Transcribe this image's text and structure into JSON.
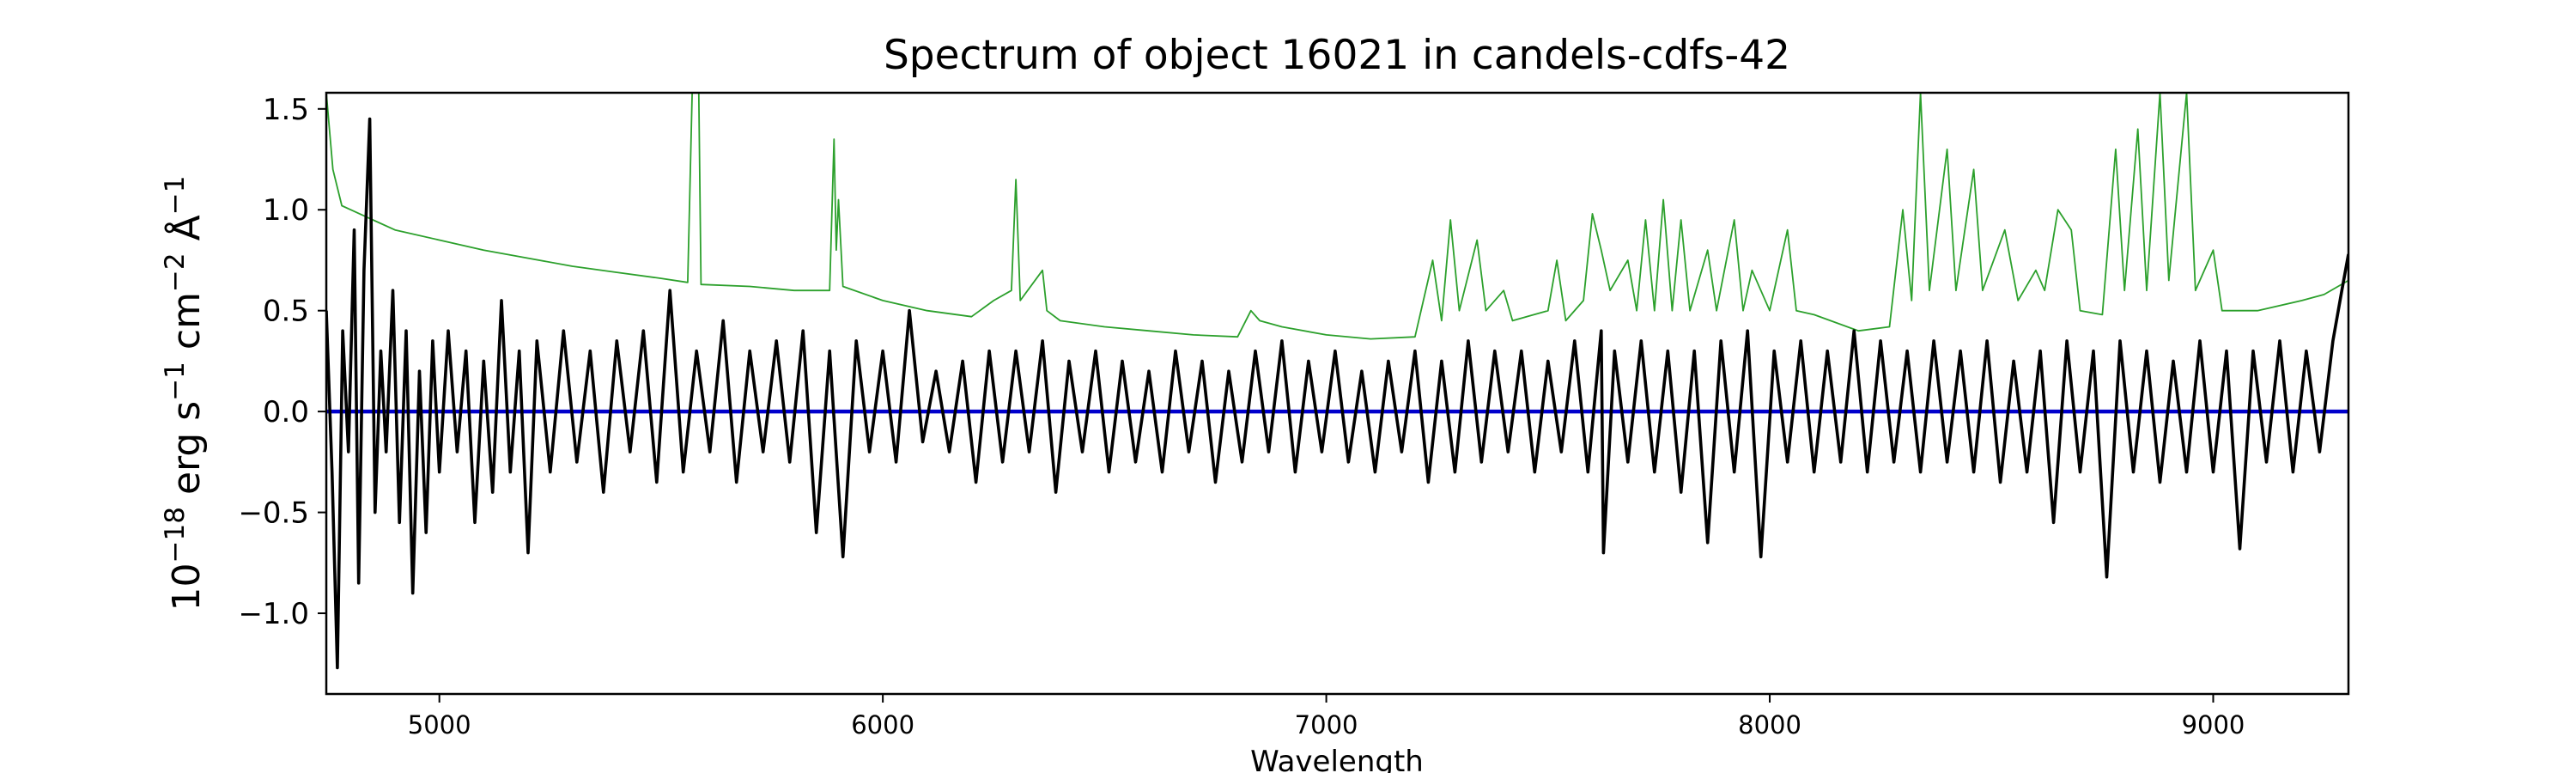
{
  "chart_data": {
    "type": "line",
    "title": "Spectrum of object 16021 in candels-cdfs-42",
    "xlabel": "Wavelength",
    "ylabel": {
      "base": "10",
      "exp1": "−18",
      "t1": " erg s",
      "exp2": "−1",
      "t2": " cm",
      "exp3": "−2",
      "t3": " Å",
      "exp4": "−1"
    },
    "xlim": [
      4745,
      9305
    ],
    "ylim": [
      -1.4,
      1.58
    ],
    "xticks": [
      {
        "value": 5000,
        "label": "5000"
      },
      {
        "value": 6000,
        "label": "6000"
      },
      {
        "value": 7000,
        "label": "7000"
      },
      {
        "value": 8000,
        "label": "8000"
      },
      {
        "value": 9000,
        "label": "9000"
      }
    ],
    "yticks": [
      {
        "value": -1.0,
        "label": "−1.0"
      },
      {
        "value": -0.5,
        "label": "−0.5"
      },
      {
        "value": 0.0,
        "label": "0.0"
      },
      {
        "value": 0.5,
        "label": "0.5"
      },
      {
        "value": 1.0,
        "label": "1.0"
      },
      {
        "value": 1.5,
        "label": "1.5"
      }
    ],
    "grid": false,
    "series": [
      {
        "role": "error",
        "color": "#2ca02c",
        "points": [
          [
            4745,
            1.58
          ],
          [
            4760,
            1.2
          ],
          [
            4780,
            1.02
          ],
          [
            4800,
            1.0
          ],
          [
            4850,
            0.95
          ],
          [
            4900,
            0.9
          ],
          [
            5000,
            0.85
          ],
          [
            5100,
            0.8
          ],
          [
            5200,
            0.76
          ],
          [
            5300,
            0.72
          ],
          [
            5400,
            0.69
          ],
          [
            5500,
            0.66
          ],
          [
            5560,
            0.64
          ],
          [
            5570,
            1.58
          ],
          [
            5585,
            1.58
          ],
          [
            5590,
            0.63
          ],
          [
            5700,
            0.62
          ],
          [
            5800,
            0.6
          ],
          [
            5880,
            0.6
          ],
          [
            5890,
            1.35
          ],
          [
            5895,
            0.8
          ],
          [
            5900,
            1.05
          ],
          [
            5910,
            0.62
          ],
          [
            6000,
            0.55
          ],
          [
            6100,
            0.5
          ],
          [
            6200,
            0.47
          ],
          [
            6250,
            0.55
          ],
          [
            6290,
            0.6
          ],
          [
            6300,
            1.15
          ],
          [
            6310,
            0.55
          ],
          [
            6360,
            0.7
          ],
          [
            6370,
            0.5
          ],
          [
            6400,
            0.45
          ],
          [
            6500,
            0.42
          ],
          [
            6600,
            0.4
          ],
          [
            6700,
            0.38
          ],
          [
            6800,
            0.37
          ],
          [
            6830,
            0.5
          ],
          [
            6850,
            0.45
          ],
          [
            6900,
            0.42
          ],
          [
            7000,
            0.38
          ],
          [
            7100,
            0.36
          ],
          [
            7200,
            0.37
          ],
          [
            7240,
            0.75
          ],
          [
            7260,
            0.45
          ],
          [
            7280,
            0.95
          ],
          [
            7300,
            0.5
          ],
          [
            7340,
            0.85
          ],
          [
            7360,
            0.5
          ],
          [
            7400,
            0.6
          ],
          [
            7420,
            0.45
          ],
          [
            7500,
            0.5
          ],
          [
            7520,
            0.75
          ],
          [
            7540,
            0.45
          ],
          [
            7580,
            0.55
          ],
          [
            7600,
            0.98
          ],
          [
            7620,
            0.8
          ],
          [
            7640,
            0.6
          ],
          [
            7680,
            0.75
          ],
          [
            7700,
            0.5
          ],
          [
            7720,
            0.95
          ],
          [
            7740,
            0.5
          ],
          [
            7760,
            1.05
          ],
          [
            7780,
            0.5
          ],
          [
            7800,
            0.95
          ],
          [
            7820,
            0.5
          ],
          [
            7860,
            0.8
          ],
          [
            7880,
            0.5
          ],
          [
            7920,
            0.95
          ],
          [
            7940,
            0.5
          ],
          [
            7960,
            0.7
          ],
          [
            8000,
            0.5
          ],
          [
            8040,
            0.9
          ],
          [
            8060,
            0.5
          ],
          [
            8100,
            0.48
          ],
          [
            8200,
            0.4
          ],
          [
            8270,
            0.42
          ],
          [
            8300,
            1.0
          ],
          [
            8320,
            0.55
          ],
          [
            8340,
            1.58
          ],
          [
            8360,
            0.6
          ],
          [
            8400,
            1.3
          ],
          [
            8420,
            0.6
          ],
          [
            8460,
            1.2
          ],
          [
            8480,
            0.6
          ],
          [
            8530,
            0.9
          ],
          [
            8560,
            0.55
          ],
          [
            8600,
            0.7
          ],
          [
            8620,
            0.6
          ],
          [
            8650,
            1.0
          ],
          [
            8680,
            0.9
          ],
          [
            8700,
            0.5
          ],
          [
            8750,
            0.48
          ],
          [
            8780,
            1.3
          ],
          [
            8800,
            0.6
          ],
          [
            8830,
            1.4
          ],
          [
            8850,
            0.6
          ],
          [
            8880,
            1.58
          ],
          [
            8900,
            0.65
          ],
          [
            8940,
            1.58
          ],
          [
            8960,
            0.6
          ],
          [
            9000,
            0.8
          ],
          [
            9020,
            0.5
          ],
          [
            9100,
            0.5
          ],
          [
            9200,
            0.55
          ],
          [
            9250,
            0.58
          ],
          [
            9305,
            0.65
          ]
        ]
      },
      {
        "role": "model",
        "color": "#0000cc",
        "points": [
          [
            4745,
            0.0
          ],
          [
            9305,
            0.0
          ]
        ]
      },
      {
        "role": "flux",
        "color": "#000000",
        "points": [
          [
            4745,
            0.5
          ],
          [
            4758,
            -0.3
          ],
          [
            4770,
            -1.27
          ],
          [
            4782,
            0.4
          ],
          [
            4795,
            -0.2
          ],
          [
            4808,
            0.9
          ],
          [
            4818,
            -0.85
          ],
          [
            4830,
            0.7
          ],
          [
            4843,
            1.45
          ],
          [
            4855,
            -0.5
          ],
          [
            4868,
            0.3
          ],
          [
            4880,
            -0.2
          ],
          [
            4895,
            0.6
          ],
          [
            4910,
            -0.55
          ],
          [
            4925,
            0.4
          ],
          [
            4940,
            -0.9
          ],
          [
            4955,
            0.2
          ],
          [
            4970,
            -0.6
          ],
          [
            4985,
            0.35
          ],
          [
            5000,
            -0.3
          ],
          [
            5020,
            0.4
          ],
          [
            5040,
            -0.2
          ],
          [
            5060,
            0.3
          ],
          [
            5080,
            -0.55
          ],
          [
            5100,
            0.25
          ],
          [
            5120,
            -0.4
          ],
          [
            5140,
            0.55
          ],
          [
            5160,
            -0.3
          ],
          [
            5180,
            0.3
          ],
          [
            5200,
            -0.7
          ],
          [
            5220,
            0.35
          ],
          [
            5250,
            -0.3
          ],
          [
            5280,
            0.4
          ],
          [
            5310,
            -0.25
          ],
          [
            5340,
            0.3
          ],
          [
            5370,
            -0.4
          ],
          [
            5400,
            0.35
          ],
          [
            5430,
            -0.2
          ],
          [
            5460,
            0.4
          ],
          [
            5490,
            -0.35
          ],
          [
            5520,
            0.6
          ],
          [
            5550,
            -0.3
          ],
          [
            5580,
            0.3
          ],
          [
            5610,
            -0.2
          ],
          [
            5640,
            0.45
          ],
          [
            5670,
            -0.35
          ],
          [
            5700,
            0.3
          ],
          [
            5730,
            -0.2
          ],
          [
            5760,
            0.35
          ],
          [
            5790,
            -0.25
          ],
          [
            5820,
            0.4
          ],
          [
            5850,
            -0.6
          ],
          [
            5880,
            0.3
          ],
          [
            5910,
            -0.72
          ],
          [
            5940,
            0.35
          ],
          [
            5970,
            -0.2
          ],
          [
            6000,
            0.3
          ],
          [
            6030,
            -0.25
          ],
          [
            6060,
            0.5
          ],
          [
            6090,
            -0.15
          ],
          [
            6120,
            0.2
          ],
          [
            6150,
            -0.2
          ],
          [
            6180,
            0.25
          ],
          [
            6210,
            -0.35
          ],
          [
            6240,
            0.3
          ],
          [
            6270,
            -0.25
          ],
          [
            6300,
            0.3
          ],
          [
            6330,
            -0.2
          ],
          [
            6360,
            0.35
          ],
          [
            6390,
            -0.4
          ],
          [
            6420,
            0.25
          ],
          [
            6450,
            -0.2
          ],
          [
            6480,
            0.3
          ],
          [
            6510,
            -0.3
          ],
          [
            6540,
            0.25
          ],
          [
            6570,
            -0.25
          ],
          [
            6600,
            0.2
          ],
          [
            6630,
            -0.3
          ],
          [
            6660,
            0.3
          ],
          [
            6690,
            -0.2
          ],
          [
            6720,
            0.25
          ],
          [
            6750,
            -0.35
          ],
          [
            6780,
            0.2
          ],
          [
            6810,
            -0.25
          ],
          [
            6840,
            0.3
          ],
          [
            6870,
            -0.2
          ],
          [
            6900,
            0.35
          ],
          [
            6930,
            -0.3
          ],
          [
            6960,
            0.25
          ],
          [
            6990,
            -0.2
          ],
          [
            7020,
            0.3
          ],
          [
            7050,
            -0.25
          ],
          [
            7080,
            0.2
          ],
          [
            7110,
            -0.3
          ],
          [
            7140,
            0.25
          ],
          [
            7170,
            -0.2
          ],
          [
            7200,
            0.3
          ],
          [
            7230,
            -0.35
          ],
          [
            7260,
            0.25
          ],
          [
            7290,
            -0.3
          ],
          [
            7320,
            0.35
          ],
          [
            7350,
            -0.25
          ],
          [
            7380,
            0.3
          ],
          [
            7410,
            -0.2
          ],
          [
            7440,
            0.3
          ],
          [
            7470,
            -0.3
          ],
          [
            7500,
            0.25
          ],
          [
            7530,
            -0.2
          ],
          [
            7560,
            0.35
          ],
          [
            7590,
            -0.3
          ],
          [
            7620,
            0.4
          ],
          [
            7625,
            -0.7
          ],
          [
            7650,
            0.3
          ],
          [
            7680,
            -0.25
          ],
          [
            7710,
            0.35
          ],
          [
            7740,
            -0.3
          ],
          [
            7770,
            0.3
          ],
          [
            7800,
            -0.4
          ],
          [
            7830,
            0.3
          ],
          [
            7860,
            -0.65
          ],
          [
            7890,
            0.35
          ],
          [
            7920,
            -0.3
          ],
          [
            7950,
            0.4
          ],
          [
            7980,
            -0.72
          ],
          [
            8010,
            0.3
          ],
          [
            8040,
            -0.25
          ],
          [
            8070,
            0.35
          ],
          [
            8100,
            -0.3
          ],
          [
            8130,
            0.3
          ],
          [
            8160,
            -0.25
          ],
          [
            8190,
            0.4
          ],
          [
            8220,
            -0.3
          ],
          [
            8250,
            0.35
          ],
          [
            8280,
            -0.25
          ],
          [
            8310,
            0.3
          ],
          [
            8340,
            -0.3
          ],
          [
            8370,
            0.35
          ],
          [
            8400,
            -0.25
          ],
          [
            8430,
            0.3
          ],
          [
            8460,
            -0.3
          ],
          [
            8490,
            0.35
          ],
          [
            8520,
            -0.35
          ],
          [
            8550,
            0.25
          ],
          [
            8580,
            -0.3
          ],
          [
            8610,
            0.3
          ],
          [
            8640,
            -0.55
          ],
          [
            8670,
            0.35
          ],
          [
            8700,
            -0.3
          ],
          [
            8730,
            0.3
          ],
          [
            8760,
            -0.82
          ],
          [
            8790,
            0.35
          ],
          [
            8820,
            -0.3
          ],
          [
            8850,
            0.3
          ],
          [
            8880,
            -0.35
          ],
          [
            8910,
            0.25
          ],
          [
            8940,
            -0.3
          ],
          [
            8970,
            0.35
          ],
          [
            9000,
            -0.3
          ],
          [
            9030,
            0.3
          ],
          [
            9060,
            -0.68
          ],
          [
            9090,
            0.3
          ],
          [
            9120,
            -0.25
          ],
          [
            9150,
            0.35
          ],
          [
            9180,
            -0.3
          ],
          [
            9210,
            0.3
          ],
          [
            9240,
            -0.2
          ],
          [
            9270,
            0.35
          ],
          [
            9290,
            0.6
          ],
          [
            9305,
            0.78
          ]
        ]
      }
    ]
  }
}
